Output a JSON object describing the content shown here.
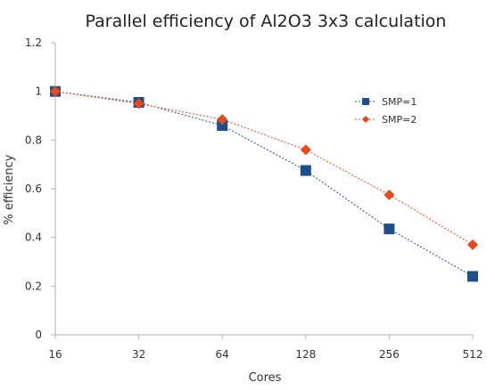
{
  "chart_data": {
    "type": "line",
    "title": "Parallel efficiency of Al2O3 3x3 calculation",
    "xlabel": "Cores",
    "ylabel": "% efficiency",
    "categories": [
      "16",
      "32",
      "64",
      "128",
      "256",
      "512"
    ],
    "ylim": [
      0,
      1.2
    ],
    "yticks": [
      "0",
      "0.2",
      "0.4",
      "0.6",
      "0.8",
      "1",
      "1.2"
    ],
    "grid": false,
    "legend_position": "right",
    "series": [
      {
        "name": "SMP=1",
        "color": "#1f4e8c",
        "marker": "square",
        "line_style": "dotted",
        "values": [
          1.0,
          0.955,
          0.86,
          0.675,
          0.435,
          0.24
        ]
      },
      {
        "name": "SMP=2",
        "color": "#e8481c",
        "marker": "diamond",
        "line_style": "dotted",
        "values": [
          1.0,
          0.95,
          0.885,
          0.76,
          0.575,
          0.37
        ]
      }
    ]
  }
}
